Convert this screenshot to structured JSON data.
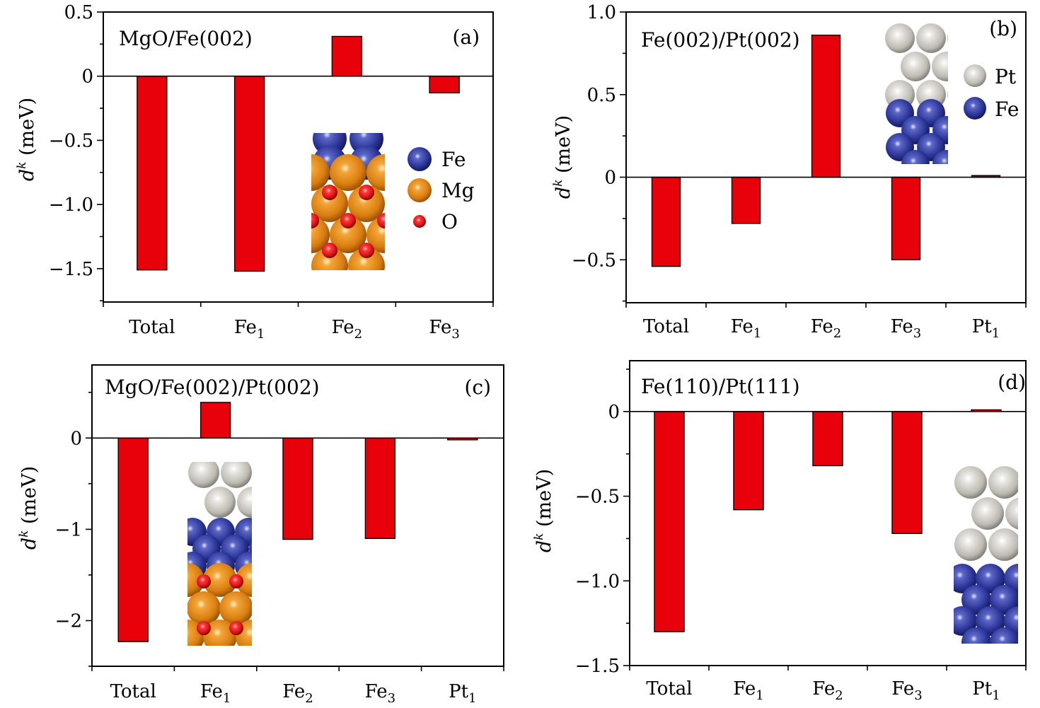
{
  "colors": {
    "bar": "#e8000b",
    "fe_atom": "#2a3496",
    "mg_atom": "#e08a14",
    "o_atom": "#e0141c",
    "pt_atom": "#c6c4be"
  },
  "legends": {
    "a": [
      {
        "label": "Fe",
        "atom": "fe"
      },
      {
        "label": "Mg",
        "atom": "mg"
      },
      {
        "label": "O",
        "atom": "o"
      }
    ],
    "b": [
      {
        "label": "Pt",
        "atom": "pt"
      },
      {
        "label": "Fe",
        "atom": "fe"
      }
    ]
  },
  "chart_data": [
    {
      "panel": "(a)",
      "title": "MgO/Fe(002)",
      "type": "bar",
      "ylabel": "d^k (meV)",
      "ylabel_base": "d",
      "ylabel_sup": "k",
      "ylabel_rest": " (meV)",
      "categories": [
        {
          "base": "Total",
          "sub": ""
        },
        {
          "base": "Fe",
          "sub": "1"
        },
        {
          "base": "Fe",
          "sub": "2"
        },
        {
          "base": "Fe",
          "sub": "3"
        }
      ],
      "values": [
        -1.51,
        -1.52,
        0.31,
        -0.13
      ],
      "ylim": [
        -1.76,
        0.5
      ],
      "yticks": [
        0.5,
        0,
        -0.5,
        -1.0,
        -1.5
      ],
      "ytick_labels": [
        "0.5",
        "0",
        "−0.5",
        "−1.0",
        "−1.5"
      ],
      "minor_step": 0.25
    },
    {
      "panel": "(b)",
      "title": "Fe(002)/Pt(002)",
      "type": "bar",
      "ylabel": "d^k (meV)",
      "ylabel_base": "d",
      "ylabel_sup": "k",
      "ylabel_rest": " (meV)",
      "categories": [
        {
          "base": "Total",
          "sub": ""
        },
        {
          "base": "Fe",
          "sub": "1"
        },
        {
          "base": "Fe",
          "sub": "2"
        },
        {
          "base": "Fe",
          "sub": "3"
        },
        {
          "base": "Pt",
          "sub": "1"
        }
      ],
      "values": [
        -0.54,
        -0.28,
        0.86,
        -0.5,
        0.01
      ],
      "ylim": [
        -0.76,
        1.0
      ],
      "yticks": [
        1.0,
        0.5,
        0,
        -0.5
      ],
      "ytick_labels": [
        "1.0",
        "0.5",
        "0",
        "−0.5"
      ],
      "minor_step": 0.25
    },
    {
      "panel": "(c)",
      "title": "MgO/Fe(002)/Pt(002)",
      "type": "bar",
      "ylabel": "d^k (meV)",
      "ylabel_base": "d",
      "ylabel_sup": "k",
      "ylabel_rest": " (meV)",
      "categories": [
        {
          "base": "Total",
          "sub": ""
        },
        {
          "base": "Fe",
          "sub": "1"
        },
        {
          "base": "Fe",
          "sub": "2"
        },
        {
          "base": "Fe",
          "sub": "3"
        },
        {
          "base": "Pt",
          "sub": "1"
        }
      ],
      "values": [
        -2.23,
        0.39,
        -1.11,
        -1.1,
        -0.02
      ],
      "ylim": [
        -2.5,
        0.8
      ],
      "yticks": [
        0,
        -1,
        -2
      ],
      "ytick_labels": [
        "0",
        "−1",
        "−2"
      ],
      "minor_step": 0.5
    },
    {
      "panel": "(d)",
      "title": "Fe(110)/Pt(111)",
      "type": "bar",
      "ylabel": "d^k (meV)",
      "ylabel_base": "d",
      "ylabel_sup": "k",
      "ylabel_rest": " (meV)",
      "categories": [
        {
          "base": "Total",
          "sub": ""
        },
        {
          "base": "Fe",
          "sub": "1"
        },
        {
          "base": "Fe",
          "sub": "2"
        },
        {
          "base": "Fe",
          "sub": "3"
        },
        {
          "base": "Pt",
          "sub": "1"
        }
      ],
      "values": [
        -1.3,
        -0.58,
        -0.32,
        -0.72,
        0.01
      ],
      "ylim": [
        -1.5,
        0.3
      ],
      "yticks": [
        0,
        -0.5,
        -1.0,
        -1.5
      ],
      "ytick_labels": [
        "0",
        "−0.5",
        "−1.0",
        "−1.5"
      ],
      "minor_step": 0.25
    }
  ]
}
